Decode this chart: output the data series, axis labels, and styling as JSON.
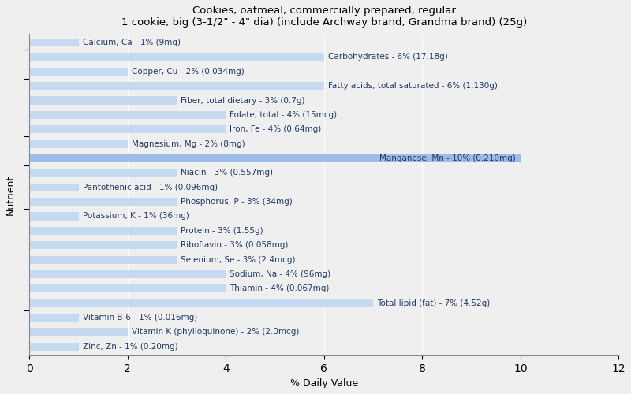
{
  "title": "Cookies, oatmeal, commercially prepared, regular\n1 cookie, big (3-1/2\" - 4\" dia) (include Archway brand, Grandma brand) (25g)",
  "xlabel": "% Daily Value",
  "ylabel": "Nutrient",
  "xlim": [
    0,
    12
  ],
  "xticks": [
    0,
    2,
    4,
    6,
    8,
    10,
    12
  ],
  "bar_color": "#c5d9f1",
  "bar_color_highlight": "#9dbde8",
  "background_color": "#efefef",
  "plot_bg_color": "#efefef",
  "nutrients": [
    {
      "name": "Calcium, Ca - 1% (9mg)",
      "value": 1,
      "highlight": false,
      "label_inside": false
    },
    {
      "name": "Carbohydrates - 6% (17.18g)",
      "value": 6,
      "highlight": false,
      "label_inside": false
    },
    {
      "name": "Copper, Cu - 2% (0.034mg)",
      "value": 2,
      "highlight": false,
      "label_inside": false
    },
    {
      "name": "Fatty acids, total saturated - 6% (1.130g)",
      "value": 6,
      "highlight": false,
      "label_inside": false
    },
    {
      "name": "Fiber, total dietary - 3% (0.7g)",
      "value": 3,
      "highlight": false,
      "label_inside": false
    },
    {
      "name": "Folate, total - 4% (15mcg)",
      "value": 4,
      "highlight": false,
      "label_inside": false
    },
    {
      "name": "Iron, Fe - 4% (0.64mg)",
      "value": 4,
      "highlight": false,
      "label_inside": false
    },
    {
      "name": "Magnesium, Mg - 2% (8mg)",
      "value": 2,
      "highlight": false,
      "label_inside": false
    },
    {
      "name": "Manganese, Mn - 10% (0.210mg)",
      "value": 10,
      "highlight": true,
      "label_inside": true
    },
    {
      "name": "Niacin - 3% (0.557mg)",
      "value": 3,
      "highlight": false,
      "label_inside": false
    },
    {
      "name": "Pantothenic acid - 1% (0.096mg)",
      "value": 1,
      "highlight": false,
      "label_inside": false
    },
    {
      "name": "Phosphorus, P - 3% (34mg)",
      "value": 3,
      "highlight": false,
      "label_inside": false
    },
    {
      "name": "Potassium, K - 1% (36mg)",
      "value": 1,
      "highlight": false,
      "label_inside": false
    },
    {
      "name": "Protein - 3% (1.55g)",
      "value": 3,
      "highlight": false,
      "label_inside": false
    },
    {
      "name": "Riboflavin - 3% (0.058mg)",
      "value": 3,
      "highlight": false,
      "label_inside": false
    },
    {
      "name": "Selenium, Se - 3% (2.4mcg)",
      "value": 3,
      "highlight": false,
      "label_inside": false
    },
    {
      "name": "Sodium, Na - 4% (96mg)",
      "value": 4,
      "highlight": false,
      "label_inside": false
    },
    {
      "name": "Thiamin - 4% (0.067mg)",
      "value": 4,
      "highlight": false,
      "label_inside": false
    },
    {
      "name": "Total lipid (fat) - 7% (4.52g)",
      "value": 7,
      "highlight": false,
      "label_inside": false
    },
    {
      "name": "Vitamin B-6 - 1% (0.016mg)",
      "value": 1,
      "highlight": false,
      "label_inside": false
    },
    {
      "name": "Vitamin K (phylloquinone) - 2% (2.0mcg)",
      "value": 2,
      "highlight": false,
      "label_inside": false
    },
    {
      "name": "Zinc, Zn - 1% (0.20mg)",
      "value": 1,
      "highlight": false,
      "label_inside": false
    }
  ],
  "title_fontsize": 9.5,
  "label_fontsize": 7.5
}
